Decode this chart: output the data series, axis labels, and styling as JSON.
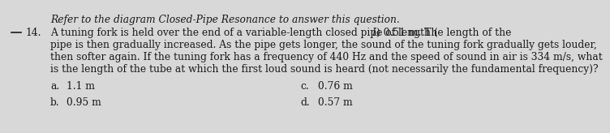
{
  "question_number": "14.",
  "line1_italic": "Refer to the diagram Closed-Pipe Resonance to answer this question.",
  "line2a": "A tuning fork is held over the end of a variable-length closed pipe of length (",
  "line2_L": "L",
  "line2b": ") 0.51 m. The length of the",
  "line3": "pipe is then gradually increased. As the pipe gets longer, the sound of the tuning fork gradually gets louder,",
  "line4": "then softer again. If the tuning fork has a frequency of 440 Hz and the speed of sound in air is 334 m/s, what",
  "line5": "is the length of the tube at which the first loud sound is heard (not necessarily the fundamental frequency)?",
  "ans_a_label": "a.",
  "ans_a_val": "1.1 m",
  "ans_b_label": "b.",
  "ans_b_val": "0.95 m",
  "ans_c_label": "c.",
  "ans_c_val": "0.76 m",
  "ans_d_label": "d.",
  "ans_d_val": "0.57 m",
  "bg_color": "#d8d8d8",
  "text_color": "#1a1a1a",
  "font_size": 8.8
}
